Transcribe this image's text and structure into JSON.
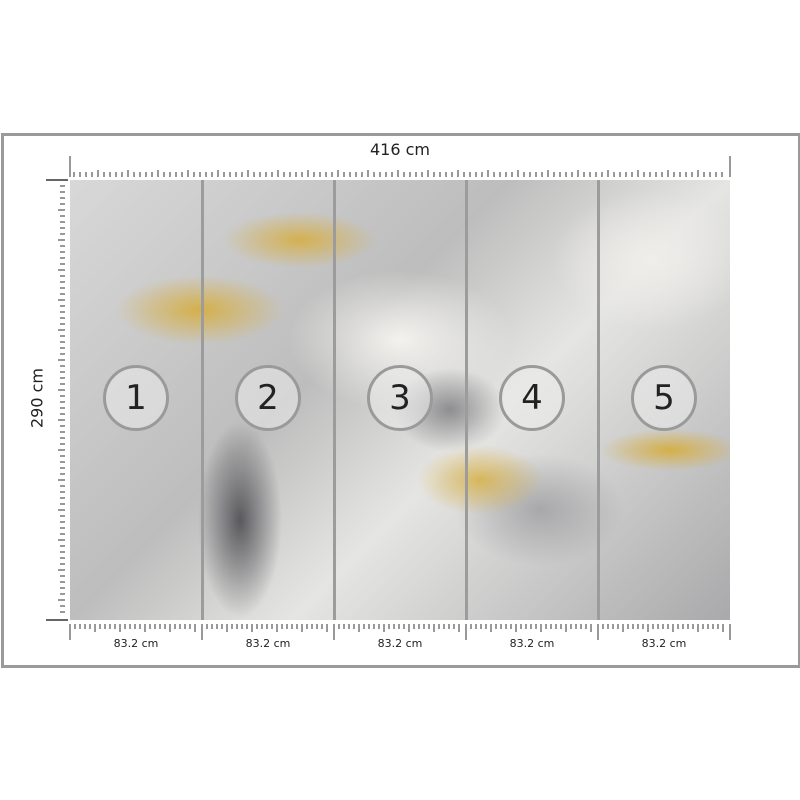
{
  "dimensions": {
    "width_label": "416 cm",
    "height_label": "290 cm"
  },
  "panels": [
    {
      "number": "1",
      "width_label": "83.2 cm"
    },
    {
      "number": "2",
      "width_label": "83.2 cm"
    },
    {
      "number": "3",
      "width_label": "83.2 cm"
    },
    {
      "number": "4",
      "width_label": "83.2 cm"
    },
    {
      "number": "5",
      "width_label": "83.2 cm"
    }
  ],
  "colors": {
    "frame": "#9a9a9a",
    "gold": "#d6ad3c",
    "marble": "#d0d0d0"
  }
}
